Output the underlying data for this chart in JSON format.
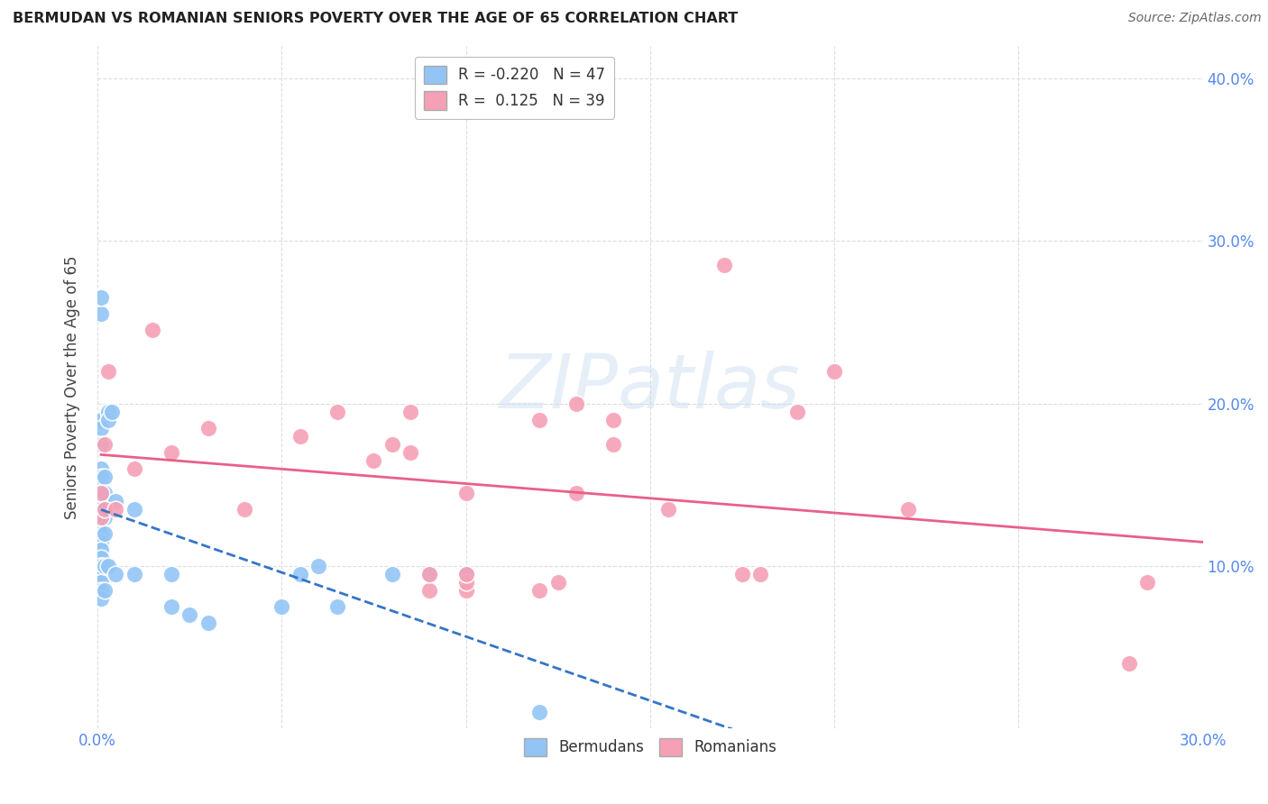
{
  "title": "BERMUDAN VS ROMANIAN SENIORS POVERTY OVER THE AGE OF 65 CORRELATION CHART",
  "source": "Source: ZipAtlas.com",
  "xlabel": "",
  "ylabel": "Seniors Poverty Over the Age of 65",
  "xlim": [
    0.0,
    0.3
  ],
  "ylim": [
    0.0,
    0.42
  ],
  "xticks": [
    0.0,
    0.05,
    0.1,
    0.15,
    0.2,
    0.25,
    0.3
  ],
  "yticks": [
    0.0,
    0.1,
    0.2,
    0.3,
    0.4
  ],
  "xtick_labels": [
    "0.0%",
    "",
    "",
    "",
    "",
    "",
    "30.0%"
  ],
  "ytick_labels_right": [
    "",
    "10.0%",
    "20.0%",
    "30.0%",
    "40.0%"
  ],
  "legend_r_bermudan": "-0.220",
  "legend_n_bermudan": "47",
  "legend_r_romanian": "0.125",
  "legend_n_romanian": "39",
  "bermudans_color": "#92C5F5",
  "romanians_color": "#F5A0B5",
  "trend_bermudan_color": "#3575C8",
  "trend_romanian_color": "#E8608A",
  "watermark_text": "ZIPatlas",
  "background_color": "#FFFFFF",
  "grid_color": "#DDDDDD",
  "bermudans_x": [
    0.001,
    0.001,
    0.001,
    0.001,
    0.001,
    0.001,
    0.001,
    0.001,
    0.001,
    0.001,
    0.001,
    0.001,
    0.001,
    0.001,
    0.001,
    0.001,
    0.001,
    0.001,
    0.001,
    0.001,
    0.001,
    0.002,
    0.002,
    0.002,
    0.002,
    0.002,
    0.002,
    0.003,
    0.003,
    0.003,
    0.004,
    0.005,
    0.005,
    0.01,
    0.01,
    0.02,
    0.02,
    0.025,
    0.03,
    0.05,
    0.055,
    0.06,
    0.065,
    0.08,
    0.09,
    0.1,
    0.12
  ],
  "bermudans_y": [
    0.255,
    0.265,
    0.19,
    0.185,
    0.175,
    0.16,
    0.155,
    0.145,
    0.135,
    0.13,
    0.125,
    0.12,
    0.115,
    0.11,
    0.105,
    0.1,
    0.1,
    0.095,
    0.09,
    0.085,
    0.08,
    0.155,
    0.145,
    0.13,
    0.12,
    0.1,
    0.085,
    0.195,
    0.19,
    0.1,
    0.195,
    0.14,
    0.095,
    0.135,
    0.095,
    0.095,
    0.075,
    0.07,
    0.065,
    0.075,
    0.095,
    0.1,
    0.075,
    0.095,
    0.095,
    0.095,
    0.01
  ],
  "romanians_x": [
    0.001,
    0.001,
    0.002,
    0.002,
    0.003,
    0.005,
    0.01,
    0.015,
    0.02,
    0.03,
    0.04,
    0.055,
    0.065,
    0.075,
    0.08,
    0.085,
    0.085,
    0.09,
    0.09,
    0.1,
    0.1,
    0.1,
    0.1,
    0.12,
    0.12,
    0.125,
    0.13,
    0.13,
    0.14,
    0.14,
    0.155,
    0.17,
    0.175,
    0.18,
    0.19,
    0.2,
    0.22,
    0.28,
    0.285
  ],
  "romanians_y": [
    0.13,
    0.145,
    0.135,
    0.175,
    0.22,
    0.135,
    0.16,
    0.245,
    0.17,
    0.185,
    0.135,
    0.18,
    0.195,
    0.165,
    0.175,
    0.17,
    0.195,
    0.085,
    0.095,
    0.085,
    0.09,
    0.095,
    0.145,
    0.085,
    0.19,
    0.09,
    0.145,
    0.2,
    0.175,
    0.19,
    0.135,
    0.285,
    0.095,
    0.095,
    0.195,
    0.22,
    0.135,
    0.04,
    0.09
  ]
}
